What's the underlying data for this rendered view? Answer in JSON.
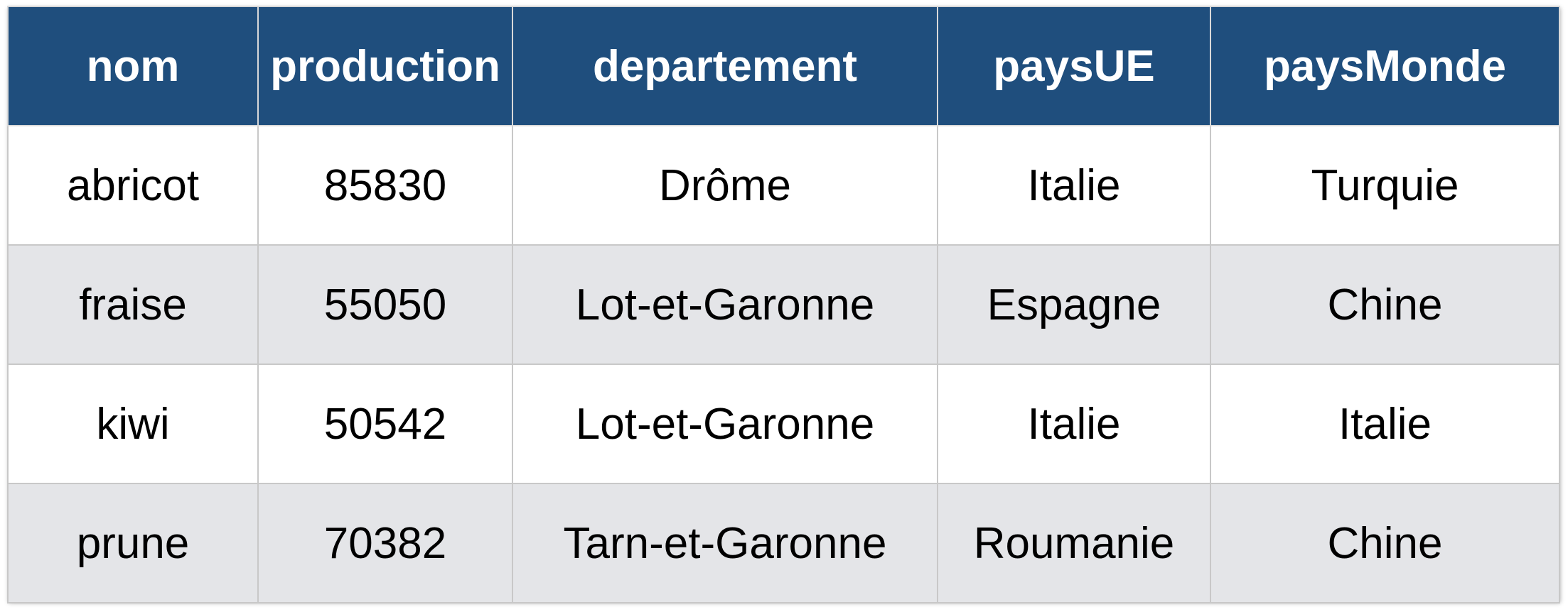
{
  "table": {
    "columns": [
      "nom",
      "production",
      "departement",
      "paysUE",
      "paysMonde"
    ],
    "rows": [
      [
        "abricot",
        "85830",
        "Drôme",
        "Italie",
        "Turquie"
      ],
      [
        "fraise",
        "55050",
        "Lot-et-Garonne",
        "Espagne",
        "Chine"
      ],
      [
        "kiwi",
        "50542",
        "Lot-et-Garonne",
        "Italie",
        "Italie"
      ],
      [
        "prune",
        "70382",
        "Tarn-et-Garonne",
        "Roumanie",
        "Chine"
      ]
    ]
  },
  "colors": {
    "header_bg": "#1f4e7d",
    "header_text": "#ffffff",
    "row_alt_bg": "#e4e5e8",
    "border": "#c8c8c8"
  }
}
